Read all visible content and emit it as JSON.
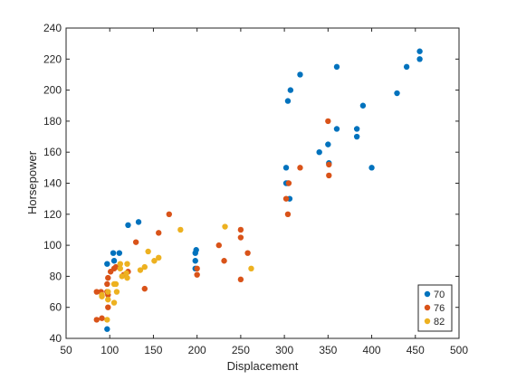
{
  "chart_data": {
    "type": "scatter",
    "title": "",
    "xlabel": "Displacement",
    "ylabel": "Horsepower",
    "xlim": [
      50,
      500
    ],
    "ylim": [
      40,
      240
    ],
    "xticks": [
      50,
      100,
      150,
      200,
      250,
      300,
      350,
      400,
      450,
      500
    ],
    "yticks": [
      40,
      60,
      80,
      100,
      120,
      140,
      160,
      180,
      200,
      220,
      240
    ],
    "grid": false,
    "legend_position": "bottom-right",
    "series": [
      {
        "name": "70",
        "color": "#0072BD",
        "points": [
          [
            97,
            88
          ],
          [
            97,
            46
          ],
          [
            104,
            95
          ],
          [
            105,
            90
          ],
          [
            111,
            95
          ],
          [
            121,
            113
          ],
          [
            133,
            115
          ],
          [
            198,
            95
          ],
          [
            199,
            97
          ],
          [
            198,
            90
          ],
          [
            198,
            85
          ],
          [
            302,
            140
          ],
          [
            302,
            150
          ],
          [
            304,
            193
          ],
          [
            307,
            200
          ],
          [
            304,
            140
          ],
          [
            306,
            130
          ],
          [
            318,
            210
          ],
          [
            340,
            160
          ],
          [
            350,
            165
          ],
          [
            351,
            153
          ],
          [
            360,
            215
          ],
          [
            360,
            175
          ],
          [
            383,
            175
          ],
          [
            383,
            170
          ],
          [
            390,
            190
          ],
          [
            400,
            150
          ],
          [
            429,
            198
          ],
          [
            440,
            215
          ],
          [
            455,
            225
          ],
          [
            455,
            220
          ]
        ]
      },
      {
        "name": "76",
        "color": "#D95319",
        "points": [
          [
            85,
            52
          ],
          [
            85,
            70
          ],
          [
            90,
            70
          ],
          [
            91,
            53
          ],
          [
            97,
            70
          ],
          [
            98,
            60
          ],
          [
            97,
            75
          ],
          [
            98,
            79
          ],
          [
            98,
            68
          ],
          [
            101,
            83
          ],
          [
            105,
            85
          ],
          [
            107,
            86
          ],
          [
            116,
            81
          ],
          [
            121,
            83
          ],
          [
            130,
            102
          ],
          [
            140,
            72
          ],
          [
            156,
            108
          ],
          [
            168,
            120
          ],
          [
            200,
            81
          ],
          [
            200,
            85
          ],
          [
            225,
            100
          ],
          [
            231,
            90
          ],
          [
            250,
            110
          ],
          [
            250,
            105
          ],
          [
            250,
            78
          ],
          [
            258,
            95
          ],
          [
            302,
            130
          ],
          [
            304,
            120
          ],
          [
            305,
            140
          ],
          [
            318,
            150
          ],
          [
            350,
            180
          ],
          [
            351,
            145
          ],
          [
            351,
            152
          ]
        ]
      },
      {
        "name": "82",
        "color": "#EDB120",
        "points": [
          [
            91,
            67
          ],
          [
            91,
            68
          ],
          [
            97,
            52
          ],
          [
            98,
            70
          ],
          [
            98,
            65
          ],
          [
            105,
            63
          ],
          [
            105,
            75
          ],
          [
            107,
            75
          ],
          [
            108,
            70
          ],
          [
            112,
            88
          ],
          [
            112,
            85
          ],
          [
            114,
            80
          ],
          [
            119,
            82
          ],
          [
            120,
            79
          ],
          [
            120,
            88
          ],
          [
            135,
            84
          ],
          [
            140,
            86
          ],
          [
            144,
            96
          ],
          [
            151,
            90
          ],
          [
            156,
            92
          ],
          [
            181,
            110
          ],
          [
            232,
            112
          ],
          [
            262,
            85
          ]
        ]
      }
    ]
  }
}
